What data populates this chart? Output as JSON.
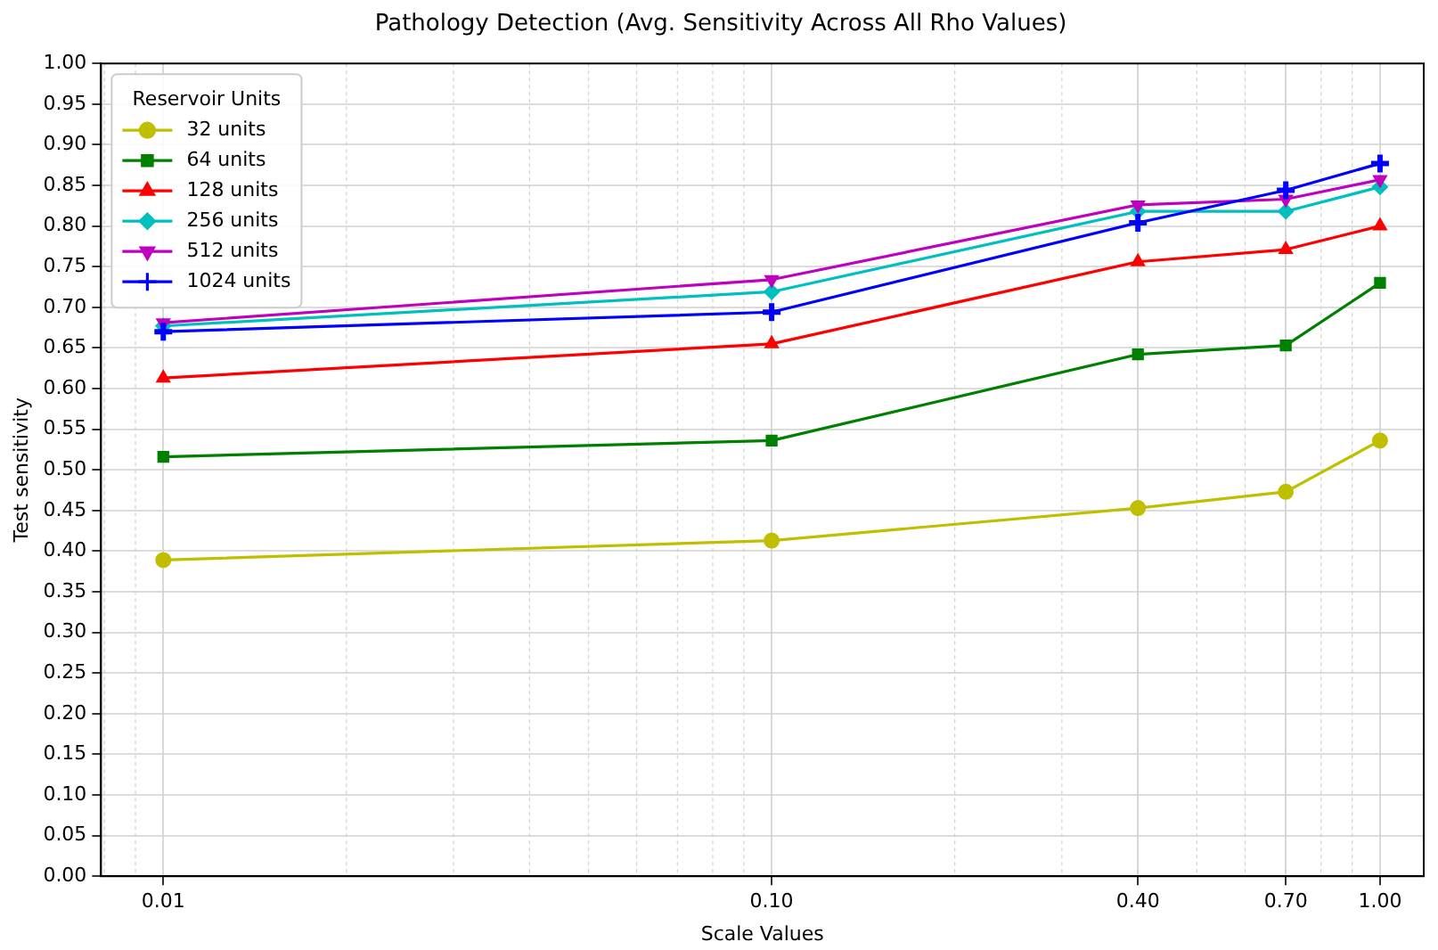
{
  "chart_data": {
    "type": "line",
    "title": "Pathology Detection (Avg. Sensitivity Across All Rho Values)",
    "xlabel": "Scale Values",
    "ylabel": "Test sensitivity",
    "legend_title": "Reservoir Units",
    "legend": "top left",
    "grid": true,
    "log": "x",
    "line_style": "solid",
    "x": [
      0.01,
      0.1,
      0.4,
      0.7,
      1.0
    ],
    "xlim": [
      0.0079,
      1.18
    ],
    "xticks": [
      {
        "value": 0.01,
        "label": "0.01"
      },
      {
        "value": 0.1,
        "label": "0.10"
      },
      {
        "value": 0.4,
        "label": "0.40"
      },
      {
        "value": 0.7,
        "label": "0.70"
      },
      {
        "value": 1.0,
        "label": "1.00"
      }
    ],
    "ylim": [
      0,
      1
    ],
    "yticks": [
      {
        "value": 0,
        "label": "0.00"
      },
      {
        "value": 0.05,
        "label": "0.05"
      },
      {
        "value": 0.1,
        "label": "0.10"
      },
      {
        "value": 0.15,
        "label": "0.15"
      },
      {
        "value": 0.2,
        "label": "0.20"
      },
      {
        "value": 0.25,
        "label": "0.25"
      },
      {
        "value": 0.3,
        "label": "0.30"
      },
      {
        "value": 0.35,
        "label": "0.35"
      },
      {
        "value": 0.4,
        "label": "0.40"
      },
      {
        "value": 0.45,
        "label": "0.45"
      },
      {
        "value": 0.5,
        "label": "0.50"
      },
      {
        "value": 0.55,
        "label": "0.55"
      },
      {
        "value": 0.6,
        "label": "0.60"
      },
      {
        "value": 0.65,
        "label": "0.65"
      },
      {
        "value": 0.7,
        "label": "0.70"
      },
      {
        "value": 0.75,
        "label": "0.75"
      },
      {
        "value": 0.8,
        "label": "0.80"
      },
      {
        "value": 0.85,
        "label": "0.85"
      },
      {
        "value": 0.9,
        "label": "0.90"
      },
      {
        "value": 0.95,
        "label": "0.95"
      },
      {
        "value": 1,
        "label": "1.00"
      }
    ],
    "series": [
      {
        "name": "32 units",
        "color": "#bfbf00",
        "marker": "circle",
        "values": [
          0.389,
          0.413,
          0.453,
          0.473,
          0.536
        ]
      },
      {
        "name": "64 units",
        "color": "#008000",
        "marker": "square",
        "values": [
          0.516,
          0.536,
          0.642,
          0.653,
          0.73
        ]
      },
      {
        "name": "128 units",
        "color": "#ff0000",
        "marker": "triangle",
        "values": [
          0.613,
          0.655,
          0.756,
          0.771,
          0.8
        ]
      },
      {
        "name": "256 units",
        "color": "#00bfbf",
        "marker": "diamond",
        "values": [
          0.677,
          0.719,
          0.818,
          0.818,
          0.848
        ]
      },
      {
        "name": "512 units",
        "color": "#bf00bf",
        "marker": "triangle_down",
        "values": [
          0.681,
          0.734,
          0.826,
          0.833,
          0.857
        ]
      },
      {
        "name": "1024 units",
        "color": "#0000ff",
        "marker": "cross",
        "values": [
          0.67,
          0.694,
          0.804,
          0.844,
          0.877
        ]
      }
    ]
  }
}
